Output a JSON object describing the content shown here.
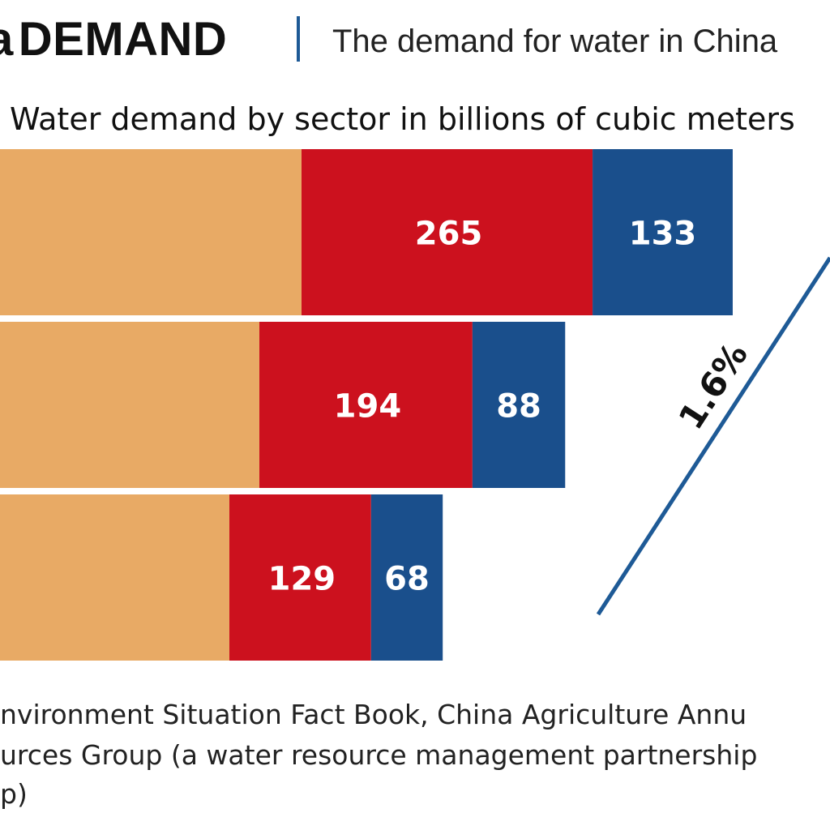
{
  "header": {
    "title_lead": "a",
    "title": "DEMAND",
    "subtitle": "The demand for water in China"
  },
  "chart_data": {
    "type": "bar",
    "orientation": "horizontal",
    "stacked": true,
    "subtitle": "Water demand by sector in billions of cubic meters",
    "series": [
      {
        "values": [
          null,
          null,
          null
        ],
        "color": "#e8aa65"
      },
      {
        "values": [
          265,
          194,
          129
        ],
        "color": "#cc111e"
      },
      {
        "values": [
          133,
          88,
          68
        ],
        "color": "#1a4f8c"
      }
    ],
    "growth_label": "1.6%",
    "growth_line_color": "#1e5a96"
  },
  "source": {
    "lines": [
      "nvironment Situation Fact Book, China Agriculture Annu",
      "urces Group (a water resource management partnership",
      "p)"
    ]
  }
}
